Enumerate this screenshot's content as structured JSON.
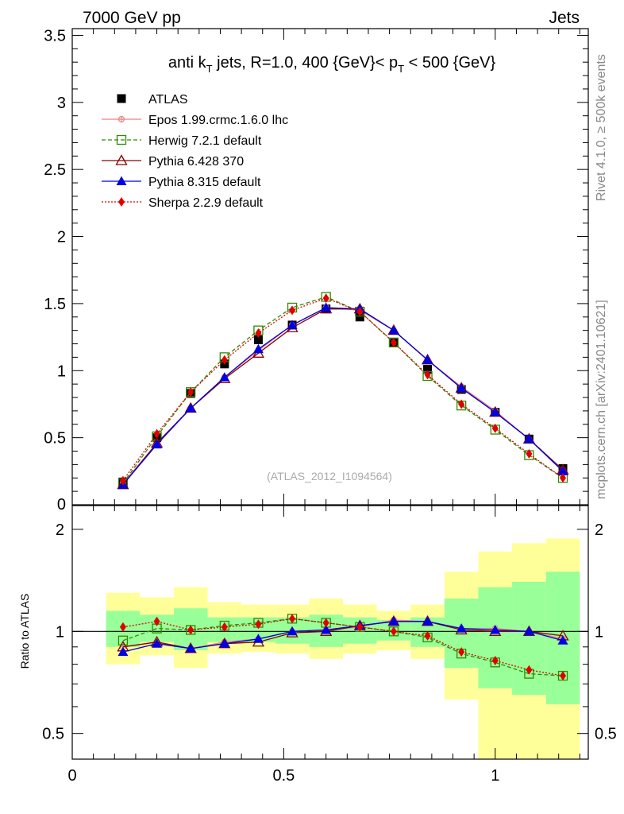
{
  "header": {
    "left": "7000 GeV pp",
    "right": "Jets"
  },
  "side_labels": {
    "rivet": "Rivet 4.1.0, ≥ 500k events",
    "mcplots": "mcplots.cern.ch [arXiv:2401.10621]"
  },
  "colors": {
    "atlas": "#000000",
    "epos": "#f08080",
    "herwig": "#2e8b00",
    "pythia6": "#8b0000",
    "pythia8": "#0000e0",
    "sherpa": "#e00000",
    "band_yellow": "#ffff99",
    "band_green": "#99ff99"
  },
  "chart_data": [
    {
      "type": "scatter",
      "title_parts": {
        "pre": "anti k",
        "sub1": "T",
        "mid": " jets, R=1.0,  400 {GeV}< p",
        "sub2": "T",
        "post": " < 500 {GeV}"
      },
      "watermark": "(ATLAS_2012_I1094564)",
      "xlim": [
        0,
        1.22
      ],
      "ylim": [
        0,
        3.55
      ],
      "y_ticks": [
        0.5,
        1,
        1.5,
        2,
        2.5,
        3,
        3.5
      ],
      "y_tick_labels": [
        "0.5",
        "1",
        "1.5",
        "2",
        "2.5",
        "3",
        "3.5"
      ],
      "y_zero_label": "0",
      "x": [
        0.12,
        0.2,
        0.28,
        0.36,
        0.44,
        0.52,
        0.6,
        0.68,
        0.76,
        0.84,
        0.92,
        1.0,
        1.08,
        1.16
      ],
      "series": [
        {
          "name": "ATLAS",
          "key": "atlas",
          "marker": "square-filled",
          "line": "none",
          "values": [
            0.17,
            0.5,
            0.83,
            1.05,
            1.23,
            1.34,
            1.46,
            1.4,
            1.21,
            1.01,
            0.86,
            0.69,
            0.49,
            0.27
          ]
        },
        {
          "name": "Epos 1.99.crmc.1.6.0 lhc",
          "key": "epos",
          "marker": "cross",
          "line": "solid",
          "values": [
            0.16,
            0.46,
            0.72,
            0.95,
            1.15,
            1.34,
            1.47,
            1.45,
            1.3,
            1.08,
            0.88,
            0.7,
            0.49,
            0.26
          ]
        },
        {
          "name": "Herwig 7.2.1 default",
          "key": "herwig",
          "marker": "square-open",
          "line": "dashed",
          "values": [
            0.16,
            0.51,
            0.84,
            1.1,
            1.3,
            1.47,
            1.55,
            1.44,
            1.21,
            0.96,
            0.74,
            0.56,
            0.37,
            0.2
          ]
        },
        {
          "name": "Pythia 6.428 370",
          "key": "pythia6",
          "marker": "triangle-open",
          "line": "solid",
          "values": [
            0.15,
            0.46,
            0.72,
            0.94,
            1.13,
            1.32,
            1.46,
            1.46,
            1.3,
            1.08,
            0.87,
            0.69,
            0.49,
            0.26
          ]
        },
        {
          "name": "Pythia 8.315 default",
          "key": "pythia8",
          "marker": "triangle-filled",
          "line": "solid",
          "values": [
            0.15,
            0.45,
            0.72,
            0.95,
            1.16,
            1.34,
            1.47,
            1.46,
            1.3,
            1.08,
            0.87,
            0.69,
            0.49,
            0.25
          ]
        },
        {
          "name": "Sherpa 2.2.9 default",
          "key": "sherpa",
          "marker": "diamond-filled",
          "line": "dotted",
          "values": [
            0.18,
            0.53,
            0.84,
            1.08,
            1.28,
            1.45,
            1.54,
            1.44,
            1.21,
            0.97,
            0.75,
            0.57,
            0.38,
            0.2
          ]
        }
      ]
    },
    {
      "type": "scatter",
      "ylabel": "Ratio to ATLAS",
      "log_y": true,
      "xlim": [
        0,
        1.22
      ],
      "ylim": [
        0.42,
        2.35
      ],
      "x_tick_labels": [
        {
          "value": 0,
          "label": "0"
        },
        {
          "value": 0.5,
          "label": "0.5"
        },
        {
          "value": 1,
          "label": "1"
        }
      ],
      "y_tick_labels": [
        {
          "value": 0.5,
          "label": "0.5"
        },
        {
          "value": 1,
          "label": "1"
        },
        {
          "value": 2,
          "label": "2"
        }
      ],
      "bin_edges": [
        0.08,
        0.16,
        0.24,
        0.32,
        0.4,
        0.48,
        0.56,
        0.64,
        0.72,
        0.8,
        0.88,
        0.96,
        1.04,
        1.12,
        1.2
      ],
      "band_yellow": [
        [
          0.8,
          1.3
        ],
        [
          0.85,
          1.26
        ],
        [
          0.78,
          1.35
        ],
        [
          0.86,
          1.22
        ],
        [
          0.87,
          1.2
        ],
        [
          0.86,
          1.2
        ],
        [
          0.83,
          1.25
        ],
        [
          0.86,
          1.2
        ],
        [
          0.88,
          1.15
        ],
        [
          0.83,
          1.2
        ],
        [
          0.63,
          1.5
        ],
        [
          0.35,
          1.72
        ],
        [
          0.35,
          1.82
        ],
        [
          0.35,
          1.88
        ]
      ],
      "band_green": [
        [
          0.9,
          1.15
        ],
        [
          0.93,
          1.12
        ],
        [
          0.88,
          1.17
        ],
        [
          0.93,
          1.1
        ],
        [
          0.93,
          1.1
        ],
        [
          0.92,
          1.1
        ],
        [
          0.9,
          1.12
        ],
        [
          0.92,
          1.1
        ],
        [
          0.94,
          1.08
        ],
        [
          0.9,
          1.1
        ],
        [
          0.78,
          1.25
        ],
        [
          0.68,
          1.35
        ],
        [
          0.65,
          1.4
        ],
        [
          0.61,
          1.5
        ]
      ],
      "series": [
        {
          "name": "Epos 1.99.crmc.1.6.0 lhc",
          "key": "epos",
          "marker": "cross",
          "line": "solid",
          "values": [
            0.9,
            0.93,
            0.89,
            0.93,
            0.95,
            1.0,
            1.01,
            1.03,
            1.08,
            1.07,
            1.02,
            1.02,
            1.0,
            0.95
          ]
        },
        {
          "name": "Herwig 7.2.1 default",
          "key": "herwig",
          "marker": "square-open",
          "line": "dashed",
          "values": [
            0.94,
            1.02,
            1.01,
            1.04,
            1.06,
            1.09,
            1.06,
            1.03,
            1.0,
            0.96,
            0.86,
            0.81,
            0.75,
            0.74
          ]
        },
        {
          "name": "Pythia 6.428 370",
          "key": "pythia6",
          "marker": "triangle-open",
          "line": "solid",
          "values": [
            0.9,
            0.93,
            0.89,
            0.92,
            0.93,
            0.99,
            1.0,
            1.04,
            1.07,
            1.07,
            1.01,
            1.0,
            1.0,
            0.97
          ]
        },
        {
          "name": "Pythia 8.315 default",
          "key": "pythia8",
          "marker": "triangle-filled",
          "line": "solid",
          "values": [
            0.87,
            0.92,
            0.89,
            0.92,
            0.95,
            1.0,
            1.01,
            1.04,
            1.07,
            1.07,
            1.02,
            1.01,
            1.0,
            0.94
          ]
        },
        {
          "name": "Sherpa 2.2.9 default",
          "key": "sherpa",
          "marker": "diamond-filled",
          "line": "dotted",
          "values": [
            1.03,
            1.07,
            1.01,
            1.03,
            1.05,
            1.09,
            1.06,
            1.03,
            1.0,
            0.97,
            0.87,
            0.82,
            0.77,
            0.74
          ]
        }
      ]
    }
  ]
}
